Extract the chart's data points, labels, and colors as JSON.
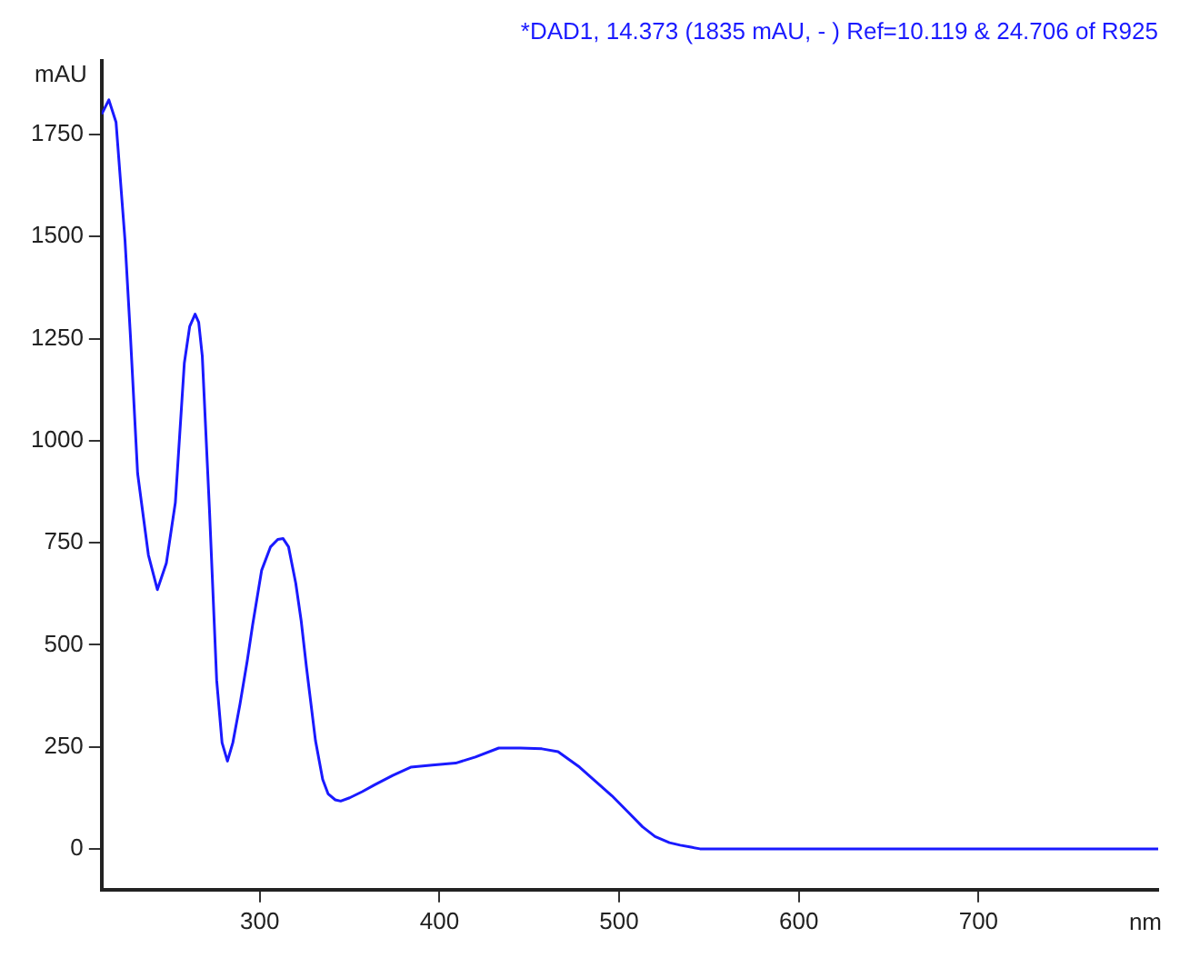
{
  "chart_data": {
    "type": "line",
    "title": "*DAD1, 14.373 (1835 mAU, - ) Ref=10.119 & 24.706 of R925",
    "xlabel": "nm",
    "ylabel": "mAU",
    "x": [
      212,
      216,
      220,
      225,
      228,
      232,
      238,
      243,
      248,
      253,
      258,
      261,
      264,
      266,
      268,
      272,
      276,
      279,
      282,
      285,
      289,
      293,
      296,
      301,
      306,
      310,
      313,
      316,
      320,
      323,
      326,
      331,
      335,
      338,
      342,
      345,
      350,
      357,
      364,
      374,
      384,
      396,
      409,
      420,
      433,
      445,
      457,
      466,
      478,
      487,
      496,
      505,
      513,
      520,
      528,
      534,
      540,
      545,
      560,
      600,
      650,
      700,
      750,
      800
    ],
    "series": [
      {
        "color": "#1a1aff",
        "values": [
          1800,
          1835,
          1780,
          1490,
          1257,
          920,
          720,
          635,
          700,
          848,
          1190,
          1280,
          1310,
          1290,
          1207,
          830,
          413,
          260,
          215,
          260,
          355,
          460,
          548,
          682,
          740,
          758,
          760,
          740,
          651,
          560,
          444,
          265,
          170,
          135,
          120,
          117,
          125,
          140,
          157,
          180,
          200,
          205,
          210,
          225,
          247,
          247,
          245,
          238,
          200,
          165,
          130,
          90,
          54,
          30,
          15,
          9,
          4,
          0,
          0,
          0,
          0,
          0,
          0,
          0
        ]
      }
    ],
    "xlim": [
      212,
      800
    ],
    "xticks": [
      300,
      400,
      500,
      600,
      700
    ],
    "ylim": [
      -100,
      1930
    ],
    "yticks": [
      0,
      250,
      500,
      750,
      1000,
      1250,
      1500,
      1750
    ],
    "marker": "none",
    "line_style": "solid"
  }
}
